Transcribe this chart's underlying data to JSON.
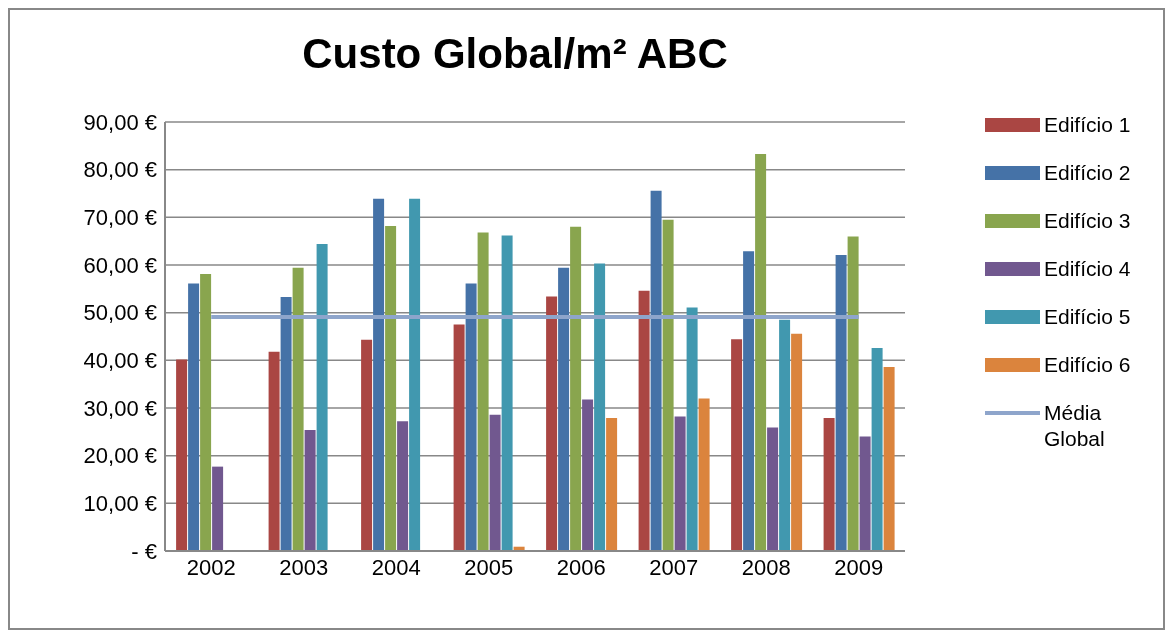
{
  "chart_data": {
    "type": "bar",
    "title": "Custo Global/m² ABC",
    "categories": [
      "2002",
      "2003",
      "2004",
      "2005",
      "2006",
      "2007",
      "2008",
      "2009"
    ],
    "series": [
      {
        "name": "Edifício 1",
        "color": "#aa4643",
        "values": [
          40.2,
          41.8,
          44.3,
          47.5,
          53.4,
          54.6,
          44.4,
          27.9
        ]
      },
      {
        "name": "Edifício 2",
        "color": "#4572a7",
        "values": [
          56.1,
          53.3,
          73.9,
          56.1,
          59.4,
          75.6,
          62.9,
          62.1
        ]
      },
      {
        "name": "Edifício 3",
        "color": "#89a54e",
        "values": [
          58.1,
          59.4,
          68.2,
          66.8,
          68.0,
          69.5,
          83.3,
          66.0
        ]
      },
      {
        "name": "Edifício 4",
        "color": "#71588f",
        "values": [
          17.7,
          25.4,
          27.2,
          28.6,
          31.8,
          28.2,
          25.9,
          24.0
        ]
      },
      {
        "name": "Edifício 5",
        "color": "#4198af",
        "values": [
          null,
          64.4,
          73.9,
          66.2,
          60.3,
          51.1,
          48.5,
          42.6
        ]
      },
      {
        "name": "Edifício 6",
        "color": "#db843d",
        "values": [
          null,
          null,
          null,
          0.9,
          27.9,
          32.0,
          45.6,
          38.6
        ]
      },
      {
        "name": "Média Global",
        "type": "line",
        "color": "#8ea5cb",
        "values": [
          49.1,
          49.1,
          49.1,
          49.1,
          49.1,
          49.1,
          49.1,
          49.1
        ]
      }
    ],
    "ylim": [
      0,
      90
    ],
    "yticks": [
      {
        "value": 0,
        "label": "-   €"
      },
      {
        "value": 10,
        "label": "10,00 €"
      },
      {
        "value": 20,
        "label": "20,00 €"
      },
      {
        "value": 30,
        "label": "30,00 €"
      },
      {
        "value": 40,
        "label": "40,00 €"
      },
      {
        "value": 50,
        "label": "50,00 €"
      },
      {
        "value": 60,
        "label": "60,00 €"
      },
      {
        "value": 70,
        "label": "70,00 €"
      },
      {
        "value": 80,
        "label": "80,00 €"
      },
      {
        "value": 90,
        "label": "90,00 €"
      }
    ],
    "grid": "y",
    "legend": "right",
    "marker": "none",
    "line_style": "solid"
  }
}
